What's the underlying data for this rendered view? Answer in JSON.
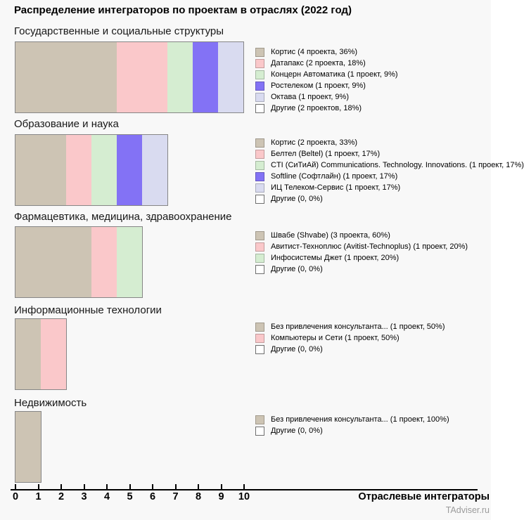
{
  "title": "Распределение интеграторов по проектам в отраслях (2022 год)",
  "axis": {
    "ticks": [
      "0",
      "1",
      "2",
      "3",
      "4",
      "5",
      "6",
      "7",
      "8",
      "9",
      "10"
    ],
    "xlabel": "Отраслевые интеграторы"
  },
  "watermark": "TAdviser.ru",
  "palette": {
    "tan": "#cdc4b4",
    "pink": "#fac8ca",
    "green": "#d5edd1",
    "purple": "#8372f5",
    "lavender": "#d9dbf0",
    "white": "#ffffff",
    "bar_border": "#868686",
    "background": "#f8f8f8"
  },
  "chart_data": [
    {
      "type": "bar",
      "orientation": "horizontal-stacked",
      "title": "Государственные и социальные структуры",
      "x_unit": "проекты",
      "series": [
        {
          "name": "Кортис",
          "value": 4,
          "percent": "36%",
          "label": "Кортис (4 проекта, 36%)",
          "color": "#cdc4b4",
          "in_bar": true
        },
        {
          "name": "Датапакс",
          "value": 2,
          "percent": "18%",
          "label": "Датапакс (2 проекта, 18%)",
          "color": "#fac8ca",
          "in_bar": true
        },
        {
          "name": "Концерн Автоматика",
          "value": 1,
          "percent": "9%",
          "label": "Концерн Автоматика (1 проект, 9%)",
          "color": "#d5edd1",
          "in_bar": true
        },
        {
          "name": "Ростелеком",
          "value": 1,
          "percent": "9%",
          "label": "Ростелеком (1 проект, 9%)",
          "color": "#8372f5",
          "in_bar": true
        },
        {
          "name": "Октава",
          "value": 1,
          "percent": "9%",
          "label": "Октава (1 проект, 9%)",
          "color": "#d9dbf0",
          "in_bar": true
        },
        {
          "name": "Другие",
          "value": 2,
          "percent": "18%",
          "label": "Другие (2 проектов, 18%)",
          "color": "#ffffff",
          "in_bar": false
        }
      ]
    },
    {
      "type": "bar",
      "orientation": "horizontal-stacked",
      "title": "Образование и наука",
      "x_unit": "проекты",
      "series": [
        {
          "name": "Кортис",
          "value": 2,
          "percent": "33%",
          "label": "Кортис (2 проекта, 33%)",
          "color": "#cdc4b4",
          "in_bar": true
        },
        {
          "name": "Белтел (Beltel)",
          "value": 1,
          "percent": "17%",
          "label": "Белтел (Beltel) (1 проект, 17%)",
          "color": "#fac8ca",
          "in_bar": true
        },
        {
          "name": "CTI (СиТиАй) Communications. Technology. Innovations.",
          "value": 1,
          "percent": "17%",
          "label": "CTI (СиТиАй) Communications. Technology. Innovations. (1 проект, 17%)",
          "color": "#d5edd1",
          "in_bar": true
        },
        {
          "name": "Softline (Софтлайн)",
          "value": 1,
          "percent": "17%",
          "label": "Softline (Софтлайн) (1 проект, 17%)",
          "color": "#8372f5",
          "in_bar": true
        },
        {
          "name": "ИЦ Телеком-Сервис",
          "value": 1,
          "percent": "17%",
          "label": "ИЦ Телеком-Сервис (1 проект, 17%)",
          "color": "#d9dbf0",
          "in_bar": true
        },
        {
          "name": "Другие",
          "value": 0,
          "percent": "0%",
          "label": "Другие (0, 0%)",
          "color": "#ffffff",
          "in_bar": false
        }
      ]
    },
    {
      "type": "bar",
      "orientation": "horizontal-stacked",
      "title": "Фармацевтика, медицина, здравоохранение",
      "x_unit": "проекты",
      "series": [
        {
          "name": "Швабе (Shvabe)",
          "value": 3,
          "percent": "60%",
          "label": "Швабе (Shvabe) (3 проекта, 60%)",
          "color": "#cdc4b4",
          "in_bar": true
        },
        {
          "name": "Авитист-Техноплюс (Avitist-Technoplus)",
          "value": 1,
          "percent": "20%",
          "label": "Авитист-Техноплюс (Avitist-Technoplus) (1 проект, 20%)",
          "color": "#fac8ca",
          "in_bar": true
        },
        {
          "name": "Инфосистемы Джет",
          "value": 1,
          "percent": "20%",
          "label": "Инфосистемы Джет (1 проект, 20%)",
          "color": "#d5edd1",
          "in_bar": true
        },
        {
          "name": "Другие",
          "value": 0,
          "percent": "0%",
          "label": "Другие (0, 0%)",
          "color": "#ffffff",
          "in_bar": false
        }
      ]
    },
    {
      "type": "bar",
      "orientation": "horizontal-stacked",
      "title": "Информационные технологии",
      "x_unit": "проекты",
      "series": [
        {
          "name": "Без привлечения консультанта...",
          "value": 1,
          "percent": "50%",
          "label": "Без привлечения консультанта... (1 проект, 50%)",
          "color": "#cdc4b4",
          "in_bar": true
        },
        {
          "name": "Компьютеры и Сети",
          "value": 1,
          "percent": "50%",
          "label": "Компьютеры и Сети (1 проект, 50%)",
          "color": "#fac8ca",
          "in_bar": true
        },
        {
          "name": "Другие",
          "value": 0,
          "percent": "0%",
          "label": "Другие (0, 0%)",
          "color": "#ffffff",
          "in_bar": false
        }
      ]
    },
    {
      "type": "bar",
      "orientation": "horizontal-stacked",
      "title": "Недвижимость",
      "x_unit": "проекты",
      "series": [
        {
          "name": "Без привлечения консультанта...",
          "value": 1,
          "percent": "100%",
          "label": "Без привлечения консультанта... (1 проект, 100%)",
          "color": "#cdc4b4",
          "in_bar": true
        },
        {
          "name": "Другие",
          "value": 0,
          "percent": "0%",
          "label": "Другие (0, 0%)",
          "color": "#ffffff",
          "in_bar": false
        }
      ]
    }
  ]
}
